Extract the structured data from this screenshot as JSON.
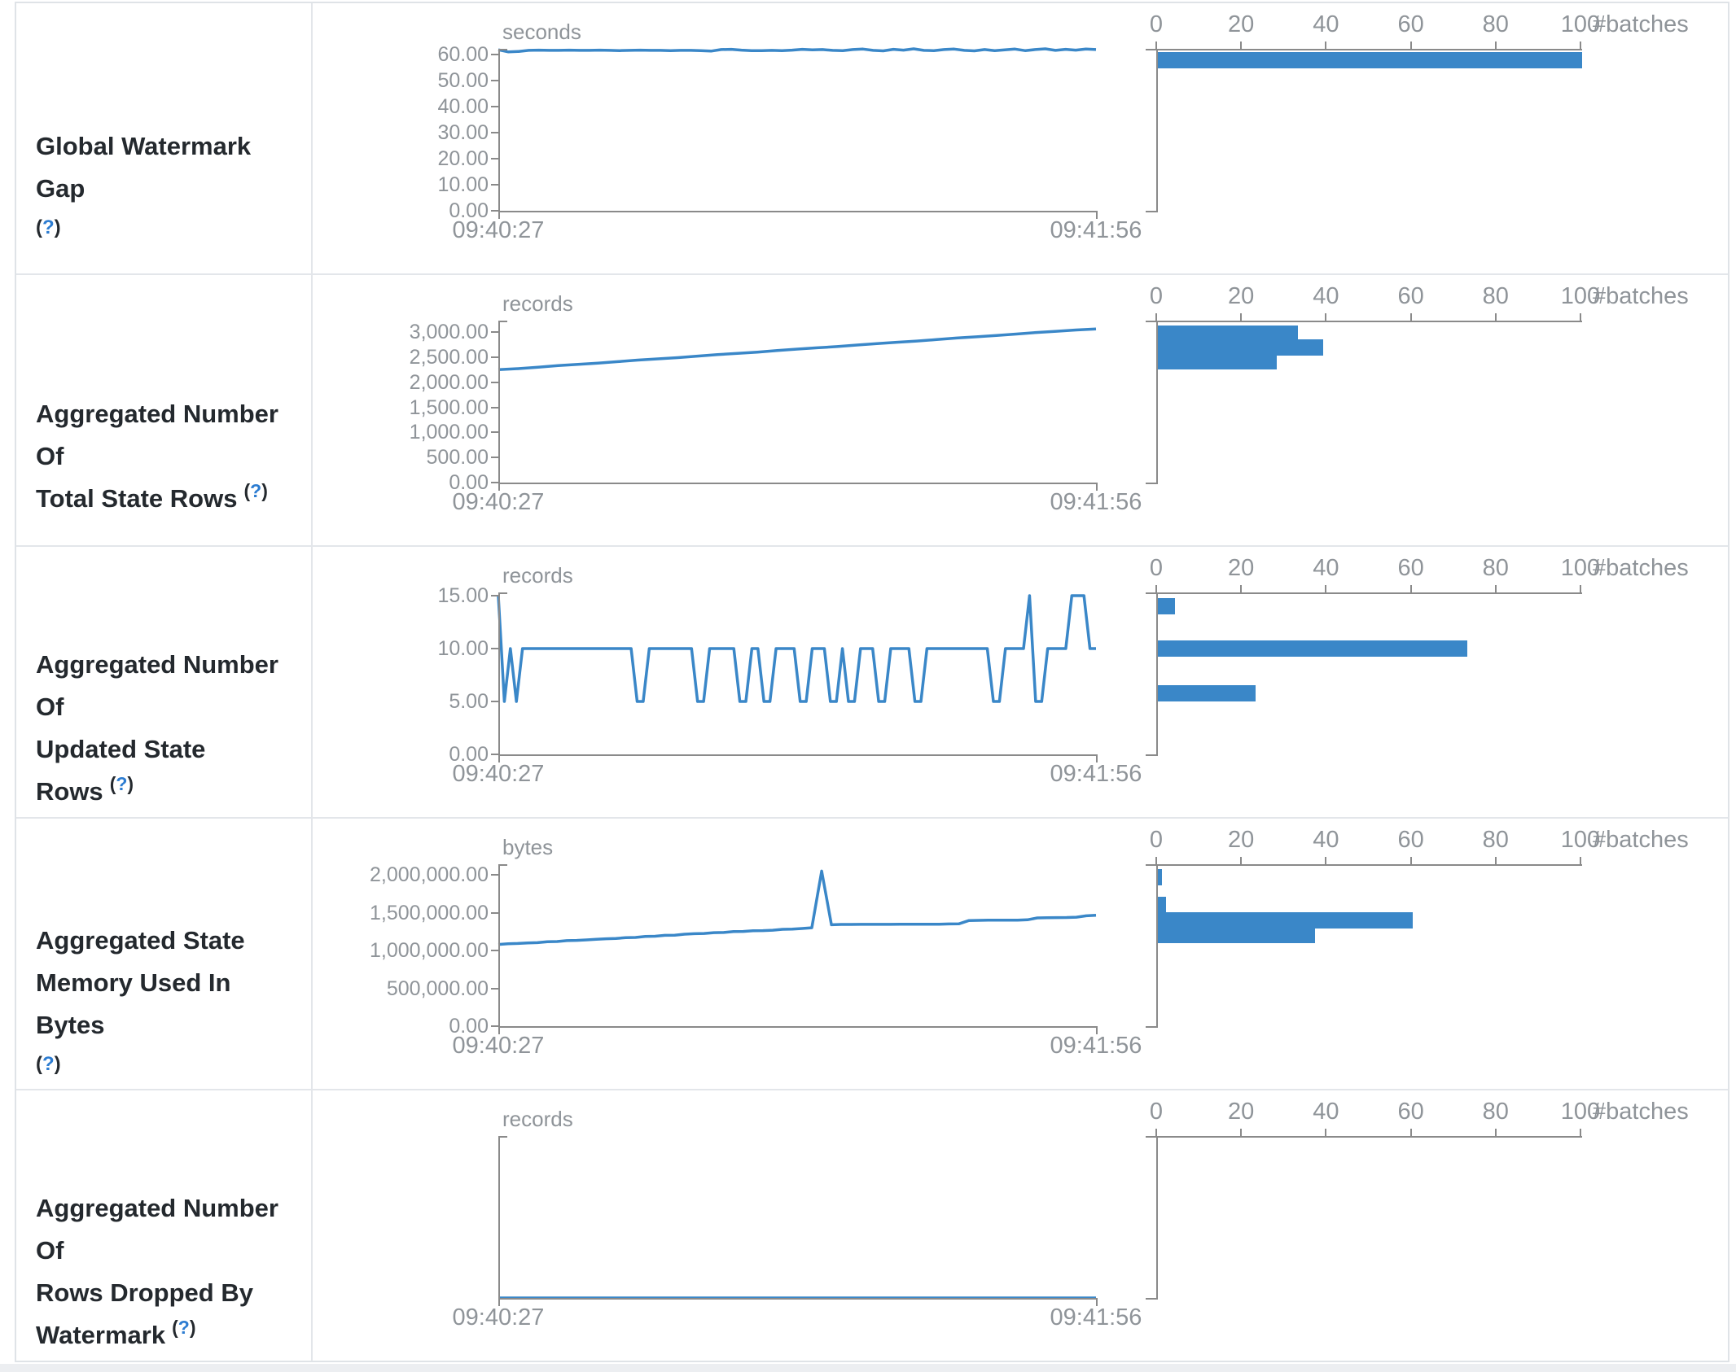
{
  "colors": {
    "series_blue": "#3a87c8",
    "axis_gray": "#8a8a8a",
    "axis_text_gray": "#8f9499",
    "label_dark": "#24292e",
    "help_link_blue": "#2c7cd1",
    "table_border": "#e3e6ea"
  },
  "help_marker": "(?)",
  "x_labels": [
    "09:40:27",
    "09:41:56"
  ],
  "histogram_axis": {
    "ticks": [
      "0",
      "20",
      "40",
      "60",
      "80",
      "100"
    ],
    "max": 100,
    "label": "#batches"
  },
  "rows": [
    {
      "label_lines": [
        "Global Watermark Gap"
      ],
      "help_placement": "newline",
      "unit": "seconds",
      "timeline_chart": 0,
      "histogram_chart": 1
    },
    {
      "label_lines": [
        "Aggregated Number Of",
        "Total State Rows"
      ],
      "help_placement": "sup",
      "unit": "records",
      "timeline_chart": 2,
      "histogram_chart": 3
    },
    {
      "label_lines": [
        "Aggregated Number Of",
        "Updated State Rows"
      ],
      "help_placement": "sup",
      "unit": "records",
      "timeline_chart": 4,
      "histogram_chart": 5
    },
    {
      "label_lines": [
        "Aggregated State",
        "Memory Used In Bytes"
      ],
      "help_placement": "newline",
      "unit": "bytes",
      "timeline_chart": 6,
      "histogram_chart": 7
    },
    {
      "label_lines": [
        "Aggregated Number Of",
        "Rows Dropped By",
        "Watermark"
      ],
      "help_placement": "sup",
      "unit": "records",
      "timeline_chart": 8,
      "histogram_chart": 9
    }
  ],
  "chart_data": [
    {
      "id": "global-watermark-gap-timeline",
      "type": "line",
      "title": "Global Watermark Gap",
      "ylabel": "seconds",
      "x_range": [
        "09:40:27",
        "09:41:56"
      ],
      "y_tick_labels": [
        "60.00",
        "50.00",
        "40.00",
        "30.00",
        "20.00",
        "10.00",
        "0.00"
      ],
      "ymax": 60,
      "ylim": [
        0,
        63
      ],
      "values": [
        61.8,
        61.0,
        61.2,
        61.6,
        61.7,
        61.6,
        61.6,
        61.7,
        61.6,
        61.6,
        61.7,
        61.6,
        61.5,
        61.6,
        61.7,
        61.6,
        61.6,
        61.5,
        61.6,
        61.6,
        61.5,
        61.3,
        61.9,
        62.0,
        61.7,
        61.5,
        61.5,
        61.6,
        61.5,
        61.7,
        62.0,
        61.8,
        61.9,
        61.6,
        61.5,
        61.9,
        62.1,
        61.6,
        61.4,
        62.0,
        61.7,
        62.2,
        61.6,
        61.5,
        61.9,
        62.1,
        61.6,
        61.4,
        61.9,
        61.5,
        61.8,
        62.1,
        61.5,
        61.9,
        62.2,
        61.6,
        62.0,
        61.7,
        62.1,
        61.9
      ]
    },
    {
      "id": "global-watermark-gap-histogram",
      "type": "bar",
      "orientation": "horizontal",
      "xlabel": "#batches",
      "x_ticks": [
        0,
        20,
        40,
        60,
        80,
        100
      ],
      "bars": [
        {
          "batches": 100,
          "offset_frac": 0.01
        }
      ]
    },
    {
      "id": "total-state-rows-timeline",
      "type": "line",
      "title": "Aggregated Number Of Total State Rows",
      "ylabel": "records",
      "x_range": [
        "09:40:27",
        "09:41:56"
      ],
      "y_tick_labels": [
        "3,000.00",
        "2,500.00",
        "2,000.00",
        "1,500.00",
        "1,000.00",
        "500.00",
        "0.00"
      ],
      "ymax": 3000,
      "ylim": [
        0,
        3100
      ],
      "values": [
        2250,
        2270,
        2300,
        2330,
        2355,
        2380,
        2410,
        2440,
        2465,
        2490,
        2520,
        2550,
        2575,
        2600,
        2630,
        2660,
        2685,
        2710,
        2740,
        2770,
        2795,
        2820,
        2850,
        2880,
        2905,
        2930,
        2960,
        2990,
        3015,
        3040,
        3060
      ]
    },
    {
      "id": "total-state-rows-histogram",
      "type": "bar",
      "orientation": "horizontal",
      "xlabel": "#batches",
      "x_ticks": [
        0,
        20,
        40,
        60,
        80,
        100
      ],
      "bars": [
        {
          "batches": 33,
          "offset_frac": 0.02
        },
        {
          "batches": 39,
          "offset_frac": 0.118
        },
        {
          "batches": 28,
          "offset_frac": 0.215
        }
      ]
    },
    {
      "id": "updated-state-rows-timeline",
      "type": "line",
      "title": "Aggregated Number Of Updated State Rows",
      "ylabel": "records",
      "x_range": [
        "09:40:27",
        "09:41:56"
      ],
      "y_tick_labels": [
        "15.00",
        "10.00",
        "5.00",
        "0.00"
      ],
      "ymax": 15,
      "ylim": [
        0,
        15
      ],
      "values": [
        15,
        5,
        10,
        5,
        10,
        10,
        10,
        10,
        10,
        10,
        10,
        10,
        10,
        10,
        10,
        10,
        10,
        10,
        10,
        10,
        10,
        10,
        10,
        5,
        5,
        10,
        10,
        10,
        10,
        10,
        10,
        10,
        10,
        5,
        5,
        10,
        10,
        10,
        10,
        10,
        5,
        5,
        10,
        10,
        5,
        5,
        10,
        10,
        10,
        10,
        5,
        5,
        10,
        10,
        10,
        5,
        5,
        10,
        5,
        5,
        10,
        10,
        10,
        5,
        5,
        10,
        10,
        10,
        10,
        5,
        5,
        10,
        10,
        10,
        10,
        10,
        10,
        10,
        10,
        10,
        10,
        10,
        5,
        5,
        10,
        10,
        10,
        10,
        15,
        5,
        5,
        10,
        10,
        10,
        10,
        15,
        15,
        15,
        10,
        10
      ]
    },
    {
      "id": "updated-state-rows-histogram",
      "type": "bar",
      "orientation": "horizontal",
      "xlabel": "#batches",
      "x_ticks": [
        0,
        20,
        40,
        60,
        80,
        100
      ],
      "bars": [
        {
          "batches": 4,
          "offset_frac": 0.03
        },
        {
          "batches": 73,
          "offset_frac": 0.32
        },
        {
          "batches": 23,
          "offset_frac": 0.623
        }
      ]
    },
    {
      "id": "state-memory-used-timeline",
      "type": "line",
      "title": "Aggregated State Memory Used In Bytes",
      "ylabel": "bytes",
      "x_range": [
        "09:40:27",
        "09:41:56"
      ],
      "y_tick_labels": [
        "2,000,000.00",
        "1,500,000.00",
        "1,000,000.00",
        "500,000.00",
        "0.00"
      ],
      "ymax": 2000000,
      "ylim": [
        0,
        2100000
      ],
      "values": [
        1080000,
        1088000,
        1092000,
        1100000,
        1103000,
        1115000,
        1118000,
        1130000,
        1133000,
        1140000,
        1148000,
        1155000,
        1158000,
        1170000,
        1172000,
        1185000,
        1188000,
        1200000,
        1202000,
        1215000,
        1222000,
        1225000,
        1235000,
        1238000,
        1250000,
        1252000,
        1260000,
        1262000,
        1268000,
        1280000,
        1282000,
        1290000,
        1300000,
        2050000,
        1340000,
        1344000,
        1344000,
        1345000,
        1345000,
        1345000,
        1345000,
        1346000,
        1346000,
        1346000,
        1347000,
        1347000,
        1350000,
        1352000,
        1395000,
        1398000,
        1400000,
        1400000,
        1400000,
        1401000,
        1405000,
        1430000,
        1433000,
        1434000,
        1435000,
        1440000,
        1458000,
        1465000
      ]
    },
    {
      "id": "state-memory-used-histogram",
      "type": "bar",
      "orientation": "horizontal",
      "xlabel": "#batches",
      "x_ticks": [
        0,
        20,
        40,
        60,
        80,
        100
      ],
      "bars": [
        {
          "batches": 1,
          "offset_frac": 0.02
        },
        {
          "batches": 2,
          "offset_frac": 0.211
        },
        {
          "batches": 60,
          "offset_frac": 0.317
        },
        {
          "batches": 37,
          "offset_frac": 0.417
        }
      ]
    },
    {
      "id": "rows-dropped-by-watermark-timeline",
      "type": "line",
      "title": "Aggregated Number Of Rows Dropped By Watermark",
      "ylabel": "records",
      "x_range": [
        "09:40:27",
        "09:41:56"
      ],
      "y_tick_labels": [],
      "ymax": 1,
      "ylim": [
        0,
        1
      ],
      "values": [
        0,
        0
      ]
    },
    {
      "id": "rows-dropped-by-watermark-histogram",
      "type": "bar",
      "orientation": "horizontal",
      "xlabel": "#batches",
      "x_ticks": [
        0,
        20,
        40,
        60,
        80,
        100
      ],
      "bars": []
    }
  ]
}
